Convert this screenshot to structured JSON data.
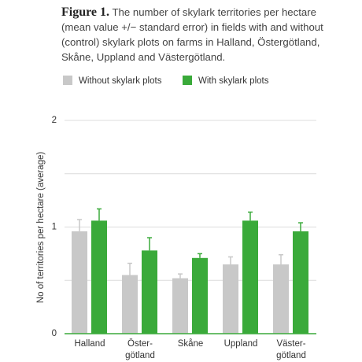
{
  "chart_data": {
    "type": "bar",
    "title": "Figure 1.",
    "caption": "The number of skylark territories per hectare (mean value +/− standard error) in fields with and without (control) skylark plots on farms in Halland, Östergötland, Skåne, Uppland and Västergötland.",
    "y_label": "No of territories per hectare (average)",
    "categories": [
      [
        "Halland"
      ],
      [
        "Öster-",
        "götland"
      ],
      [
        "Skåne"
      ],
      [
        "Uppland"
      ],
      [
        "Väster-",
        "götland"
      ]
    ],
    "series": [
      {
        "name": "Without skylark plots",
        "color": "#c8c8c8",
        "values": [
          0.96,
          0.55,
          0.52,
          0.65,
          0.65
        ],
        "errors": [
          0.11,
          0.11,
          0.04,
          0.07,
          0.09
        ]
      },
      {
        "name": "With skylark plots",
        "color": "#3aaa3a",
        "values": [
          1.06,
          0.78,
          0.71,
          1.06,
          0.96
        ],
        "errors": [
          0.11,
          0.12,
          0.04,
          0.08,
          0.08
        ]
      }
    ],
    "ylim": [
      0,
      2
    ],
    "yticks": [
      0,
      1,
      2
    ],
    "minor_yticks": [
      0.5,
      1.5
    ],
    "grid": true
  }
}
